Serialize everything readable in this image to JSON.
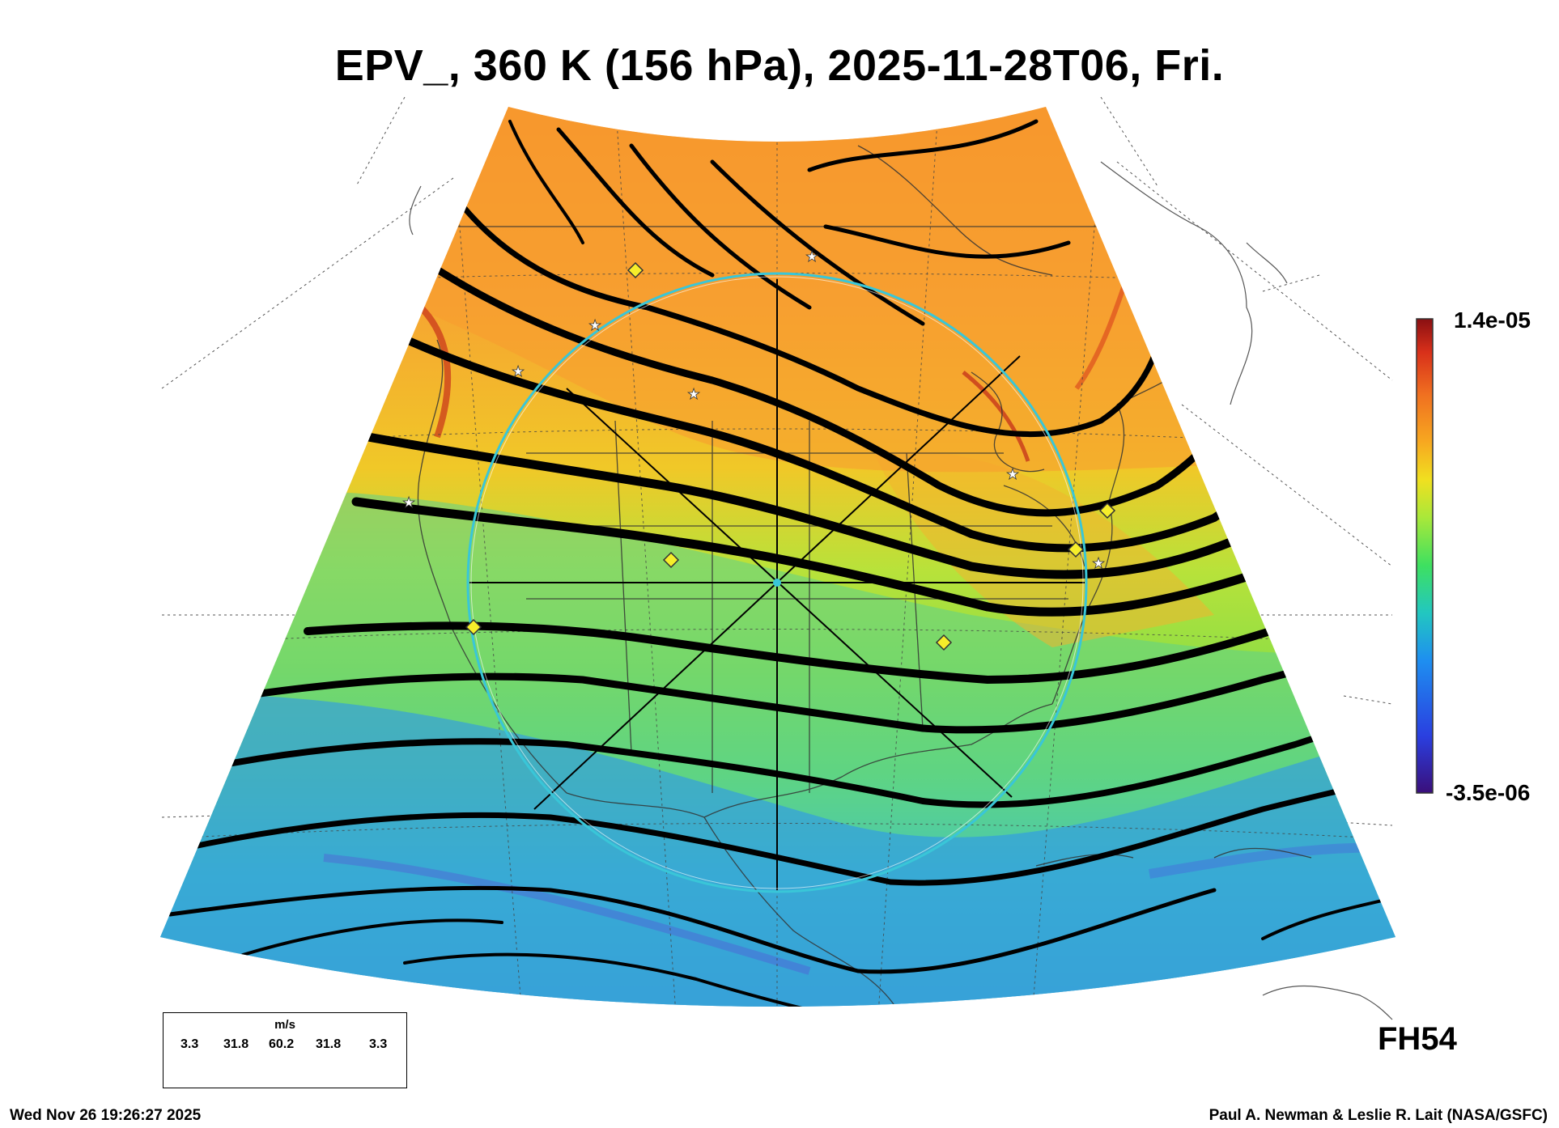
{
  "title": "EPV_, 360 K (156 hPa), 2025-11-28T06, Fri.",
  "colorbar": {
    "max_label": "1.4e-05",
    "min_label": "-3.5e-06",
    "colors": [
      "#3a0f7a",
      "#2a3fe0",
      "#1e8ff0",
      "#22c7c0",
      "#3ee060",
      "#a8e83a",
      "#f0e020",
      "#f7a820",
      "#f07020",
      "#d8301a",
      "#8a0f12"
    ]
  },
  "forecast_hour": "FH54",
  "wind_legend": {
    "unit": "m/s",
    "values": [
      "3.3",
      "31.8",
      "60.2",
      "31.8",
      "3.3"
    ]
  },
  "footer": {
    "timestamp": "Wed Nov 26 19:26:27 2025",
    "credit": "Paul A. Newman & Leslie R. Lait (NASA/GSFC)"
  },
  "map_colors": {
    "high_pv": "#f5a23a",
    "mid_pv": "#9fe040",
    "low_pv": "#2f8fe8",
    "streamline": "#000000",
    "range_ring": "#39c6d8",
    "marker_star": "#ffffff",
    "marker_diamond": "#f6ee2a"
  }
}
